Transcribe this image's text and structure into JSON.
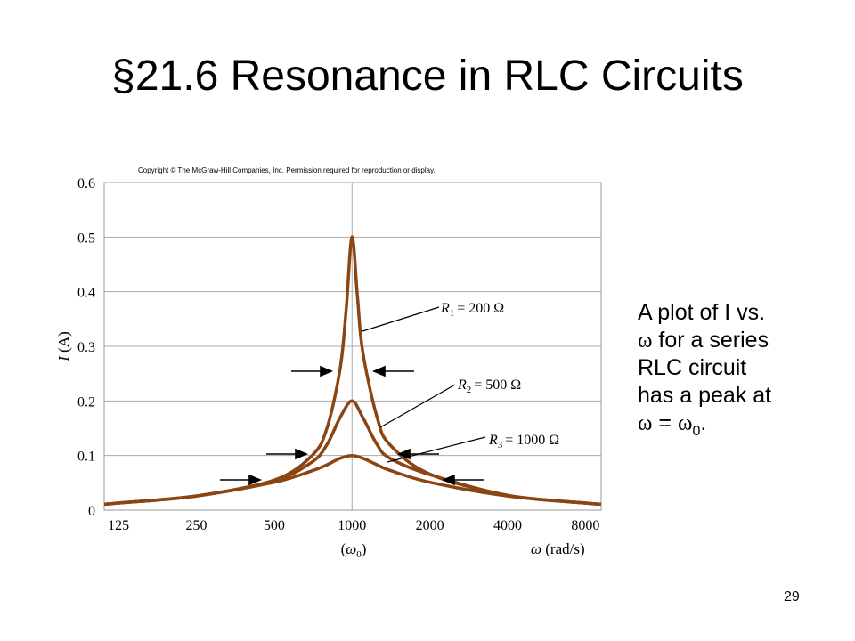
{
  "slide": {
    "title": "§21.6 Resonance in RLC Circuits",
    "page_number": "29"
  },
  "caption": {
    "line1": "A plot of I vs.",
    "line2_symbol": "ω",
    "line2_text": "for a series",
    "line3": "RLC circuit",
    "line4": "has a peak at",
    "line5_symbol": "ω",
    "line5_eq": "=",
    "line5_symbol2": "ω",
    "line5_sub": "0",
    "line5_end": "."
  },
  "chart_data": {
    "type": "line",
    "copyright": "Copyright © The McGraw-Hill Companies, Inc. Permission required for reproduction or display.",
    "xscale": "log2",
    "xlim": [
      110,
      9200
    ],
    "ylim": [
      0,
      0.6
    ],
    "x_ticks": [
      125,
      250,
      500,
      1000,
      2000,
      4000,
      8000
    ],
    "x_tick_labels": [
      "125",
      "250",
      "500",
      "1000",
      "2000",
      "4000",
      "8000"
    ],
    "y_ticks": [
      0,
      0.1,
      0.2,
      0.3,
      0.4,
      0.5,
      0.6
    ],
    "y_tick_labels": [
      "0",
      "0.1",
      "0.2",
      "0.3",
      "0.4",
      "0.5",
      "0.6"
    ],
    "xlabel": "ω (rad/s)",
    "x_marker_label": "(ω0)",
    "ylabel": "I (A)",
    "grid": true,
    "resonance_x": 1000,
    "curve_color": "#8B4513",
    "series": [
      {
        "name": "R1 = 200 Ω",
        "x": [
          110,
          125,
          250,
          500,
          700,
          800,
          900,
          950,
          1000,
          1050,
          1100,
          1250,
          1400,
          2000,
          4000,
          8000,
          9200
        ],
        "y": [
          0.011,
          0.013,
          0.026,
          0.055,
          0.1,
          0.15,
          0.26,
          0.37,
          0.5,
          0.39,
          0.29,
          0.17,
          0.12,
          0.066,
          0.027,
          0.013,
          0.011
        ]
      },
      {
        "name": "R2 = 500 Ω",
        "x": [
          110,
          125,
          250,
          500,
          700,
          800,
          900,
          1000,
          1100,
          1250,
          1400,
          2000,
          4000,
          8000,
          9200
        ],
        "y": [
          0.011,
          0.013,
          0.026,
          0.054,
          0.088,
          0.12,
          0.17,
          0.2,
          0.17,
          0.12,
          0.095,
          0.065,
          0.027,
          0.013,
          0.011
        ]
      },
      {
        "name": "R3 = 1000 Ω",
        "x": [
          110,
          125,
          250,
          500,
          700,
          800,
          900,
          1000,
          1100,
          1250,
          1400,
          2000,
          4000,
          8000,
          9200
        ],
        "y": [
          0.011,
          0.013,
          0.026,
          0.051,
          0.072,
          0.083,
          0.095,
          0.1,
          0.095,
          0.083,
          0.073,
          0.051,
          0.026,
          0.013,
          0.011
        ]
      }
    ],
    "curve_labels": [
      {
        "sub": "1",
        "value": "= 200 Ω"
      },
      {
        "sub": "2",
        "value": "= 500 Ω"
      },
      {
        "sub": "3",
        "value": "= 1000 Ω"
      }
    ]
  }
}
